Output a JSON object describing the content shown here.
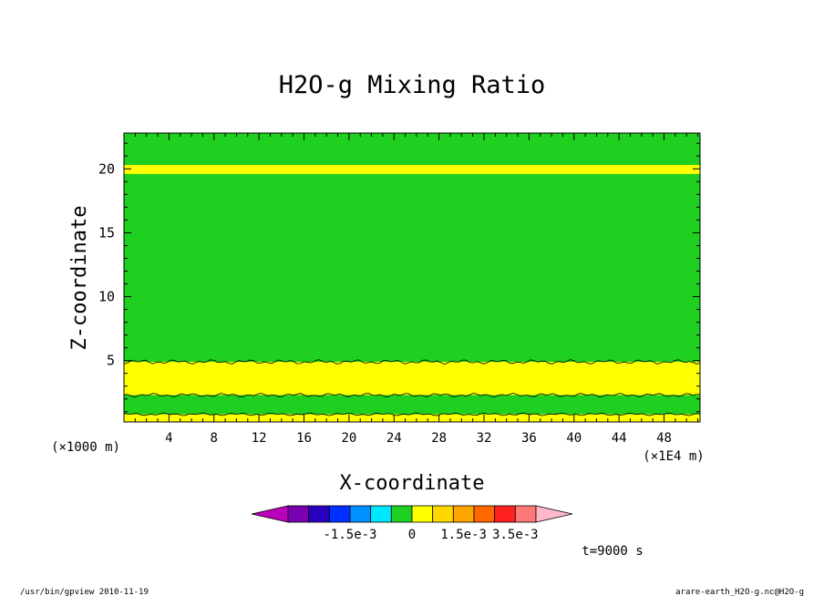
{
  "chart_data": {
    "type": "heatmap",
    "title": "H2O-g Mixing Ratio",
    "xlabel": "X-coordinate",
    "ylabel": "Z-coordinate",
    "x_unit_left": "(×1000 m)",
    "x_unit_right": "(×1E4 m)",
    "xlim": [
      0,
      51.2
    ],
    "ylim": [
      0.2,
      22.8
    ],
    "x_ticks": [
      4,
      8,
      12,
      16,
      20,
      24,
      28,
      32,
      36,
      40,
      44,
      48
    ],
    "y_ticks": [
      5,
      10,
      15,
      20
    ],
    "time_label": "t=9000 s",
    "colorbar": {
      "colors": [
        "#bb00bb",
        "#7a00b0",
        "#2a00c0",
        "#0030ff",
        "#0090ff",
        "#00e8ff",
        "#20d020",
        "#ffff00",
        "#ffd700",
        "#ffa500",
        "#ff6800",
        "#ff2020",
        "#ff7878",
        "#ffb8c8"
      ],
      "labels": [
        {
          "text": "-1.5e-3",
          "boundary": 3
        },
        {
          "text": "0",
          "boundary": 6
        },
        {
          "text": "1.5e-3",
          "boundary": 8.5
        },
        {
          "text": "3.5e-3",
          "boundary": 11
        }
      ]
    },
    "regions": [
      {
        "name": "background",
        "z": [
          0.2,
          22.8
        ],
        "color": "#20d020"
      },
      {
        "name": "upper-moist-band",
        "z": [
          19.6,
          20.3
        ],
        "color": "#ffff00"
      },
      {
        "name": "lower-moist-layer",
        "z": [
          2.3,
          4.9
        ],
        "color": "#ffff00"
      },
      {
        "name": "middle-dry-layer",
        "z": [
          0.8,
          2.3
        ],
        "color": "#20d020"
      },
      {
        "name": "surface-moist-layer",
        "z": [
          0.2,
          0.8
        ],
        "color": "#ffff00"
      }
    ]
  },
  "footer": {
    "left": "/usr/bin/gpview   2010-11-19",
    "right": "arare-earth_H2O-g.nc@H2O-g"
  }
}
